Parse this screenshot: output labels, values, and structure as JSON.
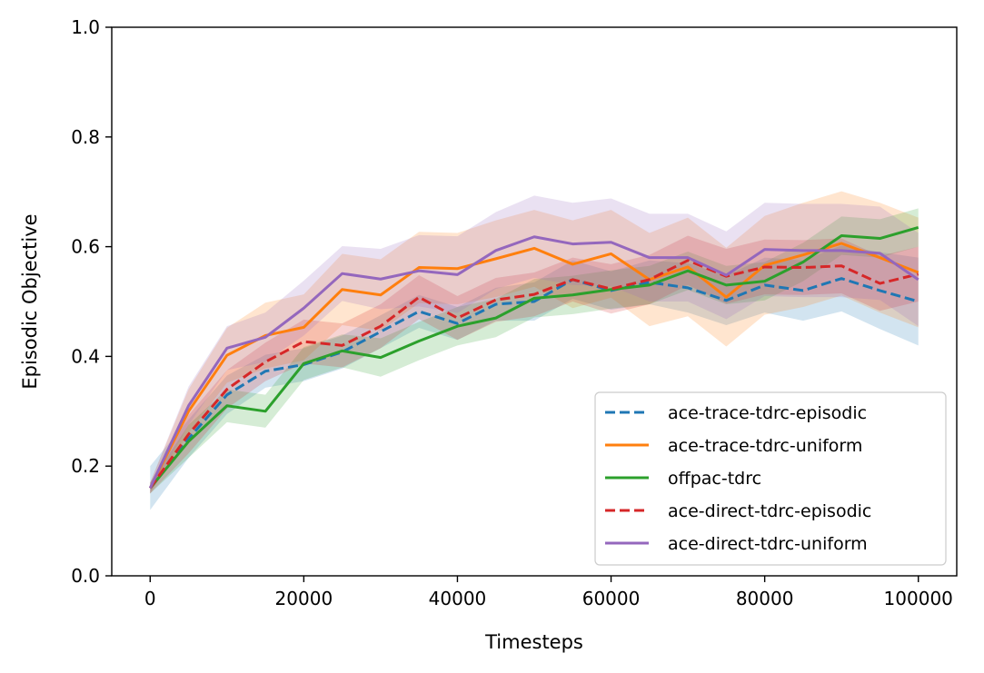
{
  "chart_data": {
    "type": "line",
    "title": "",
    "xlabel": "Timesteps",
    "ylabel": "Episodic Objective",
    "xlim": [
      -5000,
      105000
    ],
    "ylim": [
      0.0,
      1.0
    ],
    "xticks": [
      0,
      20000,
      40000,
      60000,
      80000,
      100000
    ],
    "yticks": [
      0.0,
      0.2,
      0.4,
      0.6,
      0.8,
      1.0
    ],
    "xtick_labels": [
      "0",
      "20000",
      "40000",
      "60000",
      "80000",
      "100000"
    ],
    "ytick_labels": [
      "0.0",
      "0.2",
      "0.4",
      "0.6",
      "0.8",
      "1.0"
    ],
    "grid": false,
    "legend_position": "bottom-right",
    "x": [
      0,
      5000,
      10000,
      15000,
      20000,
      25000,
      30000,
      35000,
      40000,
      45000,
      50000,
      55000,
      60000,
      65000,
      70000,
      75000,
      80000,
      85000,
      90000,
      95000,
      100000
    ],
    "series": [
      {
        "name": "ace-trace-tdrc-episodic",
        "color": "#1f77b4",
        "dash": "dashed",
        "values": [
          0.16,
          0.25,
          0.33,
          0.373,
          0.385,
          0.408,
          0.445,
          0.482,
          0.46,
          0.495,
          0.5,
          0.54,
          0.52,
          0.535,
          0.525,
          0.502,
          0.53,
          0.52,
          0.542,
          0.52,
          0.5
        ],
        "band": [
          0.04,
          0.035,
          0.035,
          0.03,
          0.03,
          0.03,
          0.03,
          0.03,
          0.03,
          0.03,
          0.035,
          0.035,
          0.035,
          0.04,
          0.045,
          0.045,
          0.05,
          0.055,
          0.06,
          0.07,
          0.08
        ]
      },
      {
        "name": "ace-trace-tdrc-uniform",
        "color": "#ff7f0e",
        "dash": "solid",
        "values": [
          0.16,
          0.3,
          0.402,
          0.438,
          0.453,
          0.522,
          0.512,
          0.562,
          0.56,
          0.578,
          0.597,
          0.568,
          0.587,
          0.54,
          0.563,
          0.508,
          0.566,
          0.585,
          0.606,
          0.58,
          0.553
        ],
        "band": [
          0.01,
          0.04,
          0.05,
          0.06,
          0.06,
          0.065,
          0.065,
          0.065,
          0.065,
          0.07,
          0.07,
          0.08,
          0.08,
          0.085,
          0.09,
          0.09,
          0.09,
          0.095,
          0.095,
          0.1,
          0.1
        ]
      },
      {
        "name": "offpac-tdrc",
        "color": "#2ca02c",
        "dash": "solid",
        "values": [
          0.16,
          0.245,
          0.31,
          0.3,
          0.387,
          0.41,
          0.398,
          0.428,
          0.455,
          0.47,
          0.506,
          0.512,
          0.522,
          0.53,
          0.556,
          0.53,
          0.537,
          0.572,
          0.62,
          0.615,
          0.635
        ],
        "band": [
          0.01,
          0.03,
          0.03,
          0.03,
          0.03,
          0.03,
          0.035,
          0.035,
          0.035,
          0.035,
          0.035,
          0.035,
          0.035,
          0.035,
          0.035,
          0.035,
          0.035,
          0.035,
          0.035,
          0.035,
          0.035
        ]
      },
      {
        "name": "ace-direct-tdrc-episodic",
        "color": "#d62728",
        "dash": "dashed",
        "values": [
          0.16,
          0.258,
          0.34,
          0.39,
          0.427,
          0.42,
          0.455,
          0.508,
          0.47,
          0.503,
          0.513,
          0.54,
          0.523,
          0.54,
          0.575,
          0.546,
          0.563,
          0.562,
          0.565,
          0.533,
          0.55
        ],
        "band": [
          0.01,
          0.035,
          0.035,
          0.035,
          0.04,
          0.04,
          0.04,
          0.04,
          0.04,
          0.04,
          0.04,
          0.04,
          0.045,
          0.045,
          0.045,
          0.05,
          0.05,
          0.05,
          0.05,
          0.05,
          0.05
        ]
      },
      {
        "name": "ace-direct-tdrc-uniform",
        "color": "#9467bd",
        "dash": "solid",
        "values": [
          0.16,
          0.31,
          0.415,
          0.435,
          0.488,
          0.551,
          0.541,
          0.556,
          0.549,
          0.593,
          0.618,
          0.605,
          0.608,
          0.58,
          0.58,
          0.548,
          0.595,
          0.593,
          0.593,
          0.588,
          0.54
        ],
        "band": [
          0.01,
          0.035,
          0.04,
          0.045,
          0.05,
          0.05,
          0.055,
          0.065,
          0.07,
          0.07,
          0.075,
          0.075,
          0.08,
          0.08,
          0.08,
          0.08,
          0.085,
          0.085,
          0.085,
          0.085,
          0.085
        ]
      }
    ]
  }
}
